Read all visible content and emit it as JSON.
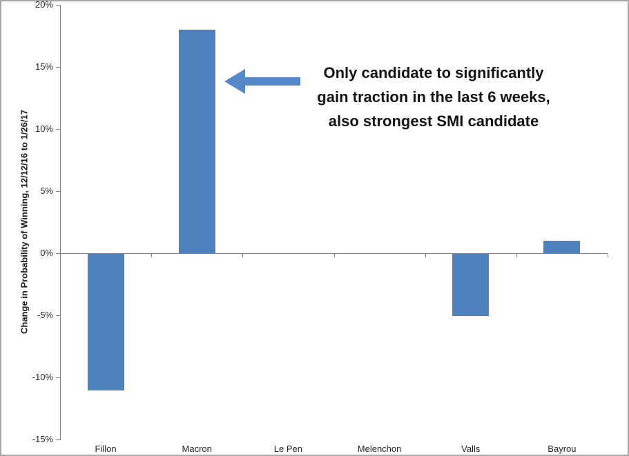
{
  "chart_data": {
    "type": "bar",
    "title": "",
    "categories": [
      "Fillon",
      "Macron",
      "Le Pen",
      "Melenchon",
      "Valls",
      "Bayrou"
    ],
    "values": [
      -11,
      18,
      0,
      0,
      -5,
      1
    ],
    "xlabel": "",
    "ylabel": "Change in Probability of Winning,  12/12/16 to 1/26/17",
    "ylim": [
      -15,
      20
    ],
    "ytick_step": 5,
    "ytick_values": [
      20,
      15,
      10,
      5,
      0,
      -5,
      -10,
      -15
    ],
    "ytick_labels": [
      "20%",
      "15%",
      "10%",
      "5%",
      "0%",
      "-5%",
      "-10%",
      "-15%"
    ],
    "grid": false,
    "legend": "none",
    "annotation": {
      "lines": [
        "Only candidate to significantly",
        "gain traction in the last 6 weeks,",
        "also strongest SMI candidate"
      ],
      "arrow_direction": "left",
      "arrow_target": "Macron"
    },
    "colors": {
      "bar": "#4f81bd",
      "arrow": "#5588c8",
      "axis": "#808080",
      "border": "#a6a6a6",
      "text": "#262626"
    }
  }
}
